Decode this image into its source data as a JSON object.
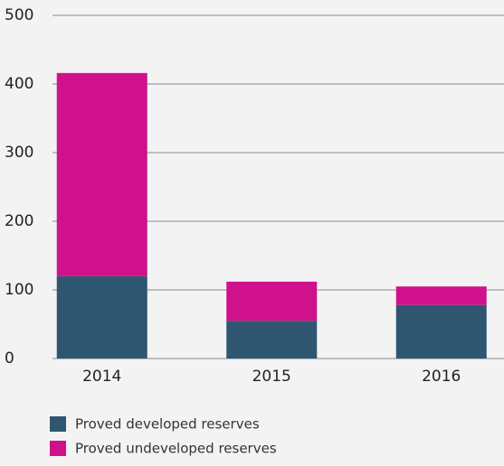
{
  "chart_data": {
    "type": "stacked_bar",
    "categories": [
      "2014",
      "2015",
      "2016"
    ],
    "series": [
      {
        "name": "Proved developed reserves",
        "color": "#2e5670",
        "values": [
          120,
          55,
          78
        ]
      },
      {
        "name": "Proved undeveloped reserves",
        "color": "#d0118c",
        "values": [
          296,
          57,
          27
        ]
      }
    ],
    "ylim": [
      0,
      500
    ],
    "yticks": [
      0,
      100,
      200,
      300,
      400,
      500
    ],
    "grid": true
  }
}
